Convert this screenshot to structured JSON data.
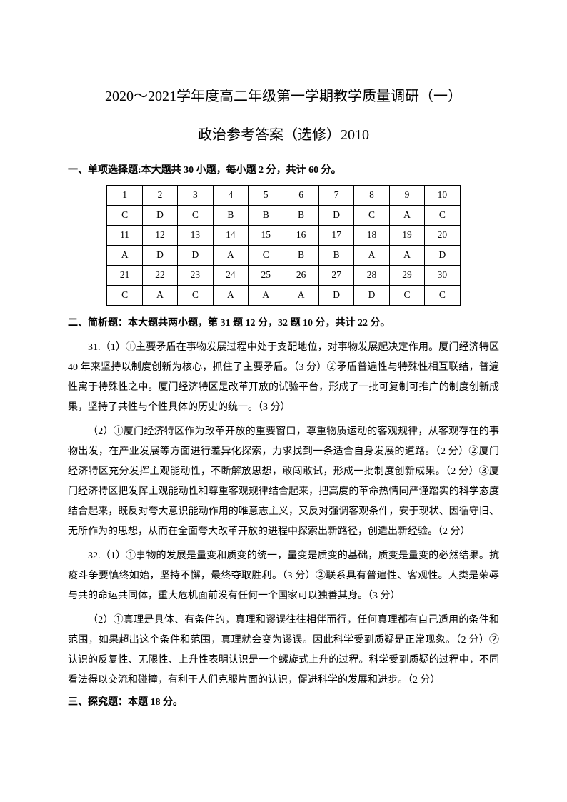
{
  "title": "2020～2021学年度高二年级第一学期教学质量调研（一）",
  "subtitle": "政治参考答案（选修）2010",
  "section1": {
    "header": "一、单项选择题:本大题共 30 小题，每小题 2 分，共计 60 分。",
    "table": {
      "rows": [
        [
          "1",
          "2",
          "3",
          "4",
          "5",
          "6",
          "7",
          "8",
          "9",
          "10"
        ],
        [
          "C",
          "D",
          "C",
          "B",
          "B",
          "B",
          "D",
          "C",
          "A",
          "C"
        ],
        [
          "11",
          "12",
          "13",
          "14",
          "15",
          "16",
          "17",
          "18",
          "19",
          "20"
        ],
        [
          "A",
          "D",
          "D",
          "A",
          "C",
          "B",
          "B",
          "A",
          "A",
          "D"
        ],
        [
          "21",
          "22",
          "23",
          "24",
          "25",
          "26",
          "27",
          "28",
          "29",
          "30"
        ],
        [
          "C",
          "A",
          "C",
          "A",
          "A",
          "A",
          "D",
          "D",
          "C",
          "C"
        ]
      ]
    }
  },
  "section2": {
    "header": "二、简析题：本大题共两小题，第 31 题 12 分，32 题 10 分，共计 22 分。",
    "paragraphs": [
      "31.（1）①主要矛盾在事物发展过程中处于支配地位，对事物发展起决定作用。厦门经济特区 40 年来坚持以制度创新为核心，抓住了主要矛盾。（3 分）②矛盾普遍性与特殊性相互联结，普遍性寓于特殊性之中。厦门经济特区是改革开放的试验平台，形成了一批可复制可推广的制度创新成果，坚持了共性与个性具体的历史的统一。（3 分）",
      "（2）①厦门经济特区作为改革开放的重要窗口，尊重物质运动的客观规律，从客观存在的事物出发，在产业发展等方面进行差异化探索，力求找到一条适合自身发展的道路。（2 分）②厦门经济特区充分发挥主观能动性，不断解放思想，敢闯敢试，形成一批制度创新成果。（2 分）③厦门经济特区把发挥主观能动性和尊重客观规律结合起来，把高度的革命热情同严谨踏实的科学态度结合起来，既反对夸大意识能动作用的唯意志主义，又反对强调客观条件，安于现状、因循守旧、无所作为的思想，从而在全面夸大改革开放的进程中探索出新路径，创造出新经验。（2 分）",
      "32.（1）①事物的发展是量变和质变的统一，量变是质变的基础，质变是量变的必然结果。抗疫斗争要慎终如始，坚持不懈，最终夺取胜利。（3 分）②联系具有普遍性、客观性。人类是荣辱与共的命运共同体，重大危机面前没有任何一个国家可以独善其身。（3 分）",
      "（2）①真理是具体、有条件的，真理和谬误往往相伴而行，任何真理都有自己适用的条件和范围，如果超出这个条件和范围，真理就会变为谬误。因此科学受到质疑是正常现象。（2 分）②认识的反复性、无限性、上升性表明认识是一个螺旋式上升的过程。科学受到质疑的过程中，不同看法得以交流和碰撞，有利于人们克服片面的认识，促进科学的发展和进步。（2 分）"
    ]
  },
  "section3": {
    "header": "三、探究题：本题 18 分。"
  }
}
